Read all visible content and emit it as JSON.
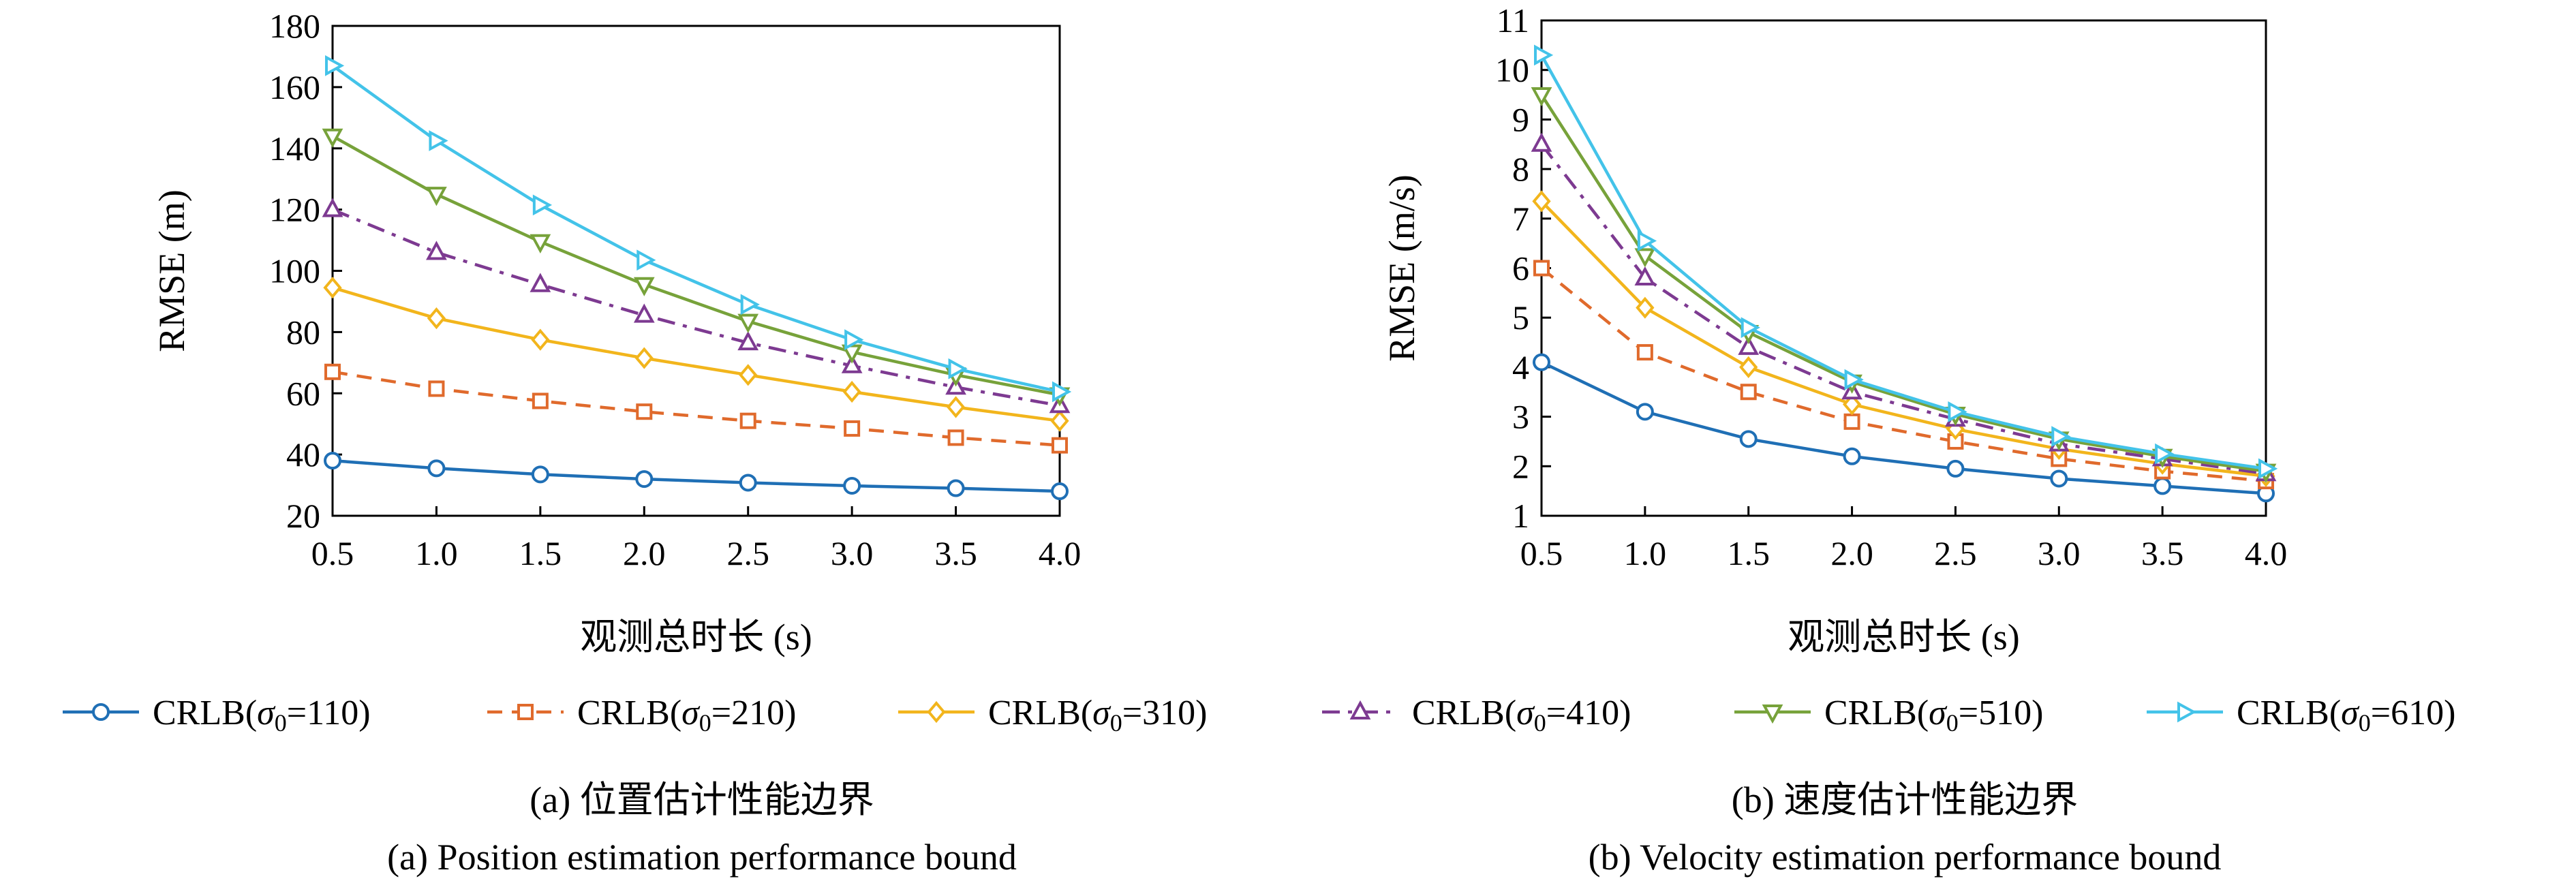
{
  "chart_data": [
    {
      "type": "line",
      "xlabel": "观测总时长 (s)",
      "ylabel": "RMSE (m)",
      "xlim": [
        0.5,
        4.0
      ],
      "ylim": [
        20,
        180
      ],
      "x": [
        0.5,
        1.0,
        1.5,
        2.0,
        2.5,
        3.0,
        3.5,
        4.0
      ],
      "x_ticks": [
        "0.5",
        "1.0",
        "1.5",
        "2.0",
        "2.5",
        "3.0",
        "3.5",
        "4.0"
      ],
      "y_ticks": [
        "20",
        "40",
        "60",
        "80",
        "100",
        "120",
        "140",
        "160",
        "180"
      ],
      "grid": false,
      "caption_zh": "(a) 位置估计性能边界",
      "caption_en": "(a) Position estimation performance bound",
      "series": [
        {
          "name": "CRLB(σ0=110)",
          "values": [
            38,
            35.5,
            33.5,
            32,
            30.8,
            29.8,
            29,
            28
          ]
        },
        {
          "name": "CRLB(σ0=210)",
          "values": [
            67,
            61.5,
            57.5,
            54,
            51,
            48.5,
            45.5,
            43
          ]
        },
        {
          "name": "CRLB(σ0=310)",
          "values": [
            94.5,
            84.5,
            77.5,
            71.5,
            66,
            60.5,
            55.5,
            51
          ]
        },
        {
          "name": "CRLB(σ0=410)",
          "values": [
            120,
            106,
            95.5,
            85.5,
            76.5,
            69,
            62,
            56
          ]
        },
        {
          "name": "CRLB(σ0=510)",
          "values": [
            144,
            125,
            109.5,
            95.5,
            83.5,
            73.5,
            66,
            59.5
          ]
        },
        {
          "name": "CRLB(σ0=610)",
          "values": [
            167,
            142.5,
            121.5,
            103.5,
            89,
            77.5,
            68,
            60.5
          ]
        }
      ]
    },
    {
      "type": "line",
      "xlabel": "观测总时长 (s)",
      "ylabel": "RMSE (m/s)",
      "xlim": [
        0.5,
        4.0
      ],
      "ylim": [
        1,
        11
      ],
      "x": [
        0.5,
        1.0,
        1.5,
        2.0,
        2.5,
        3.0,
        3.5,
        4.0
      ],
      "x_ticks": [
        "0.5",
        "1.0",
        "1.5",
        "2.0",
        "2.5",
        "3.0",
        "3.5",
        "4.0"
      ],
      "y_ticks": [
        "1",
        "2",
        "3",
        "4",
        "5",
        "6",
        "7",
        "8",
        "9",
        "10",
        "11"
      ],
      "grid": false,
      "caption_zh": "(b) 速度估计性能边界",
      "caption_en": "(b) Velocity estimation performance bound",
      "series": [
        {
          "name": "CRLB(σ0=110)",
          "values": [
            4.1,
            3.1,
            2.55,
            2.2,
            1.95,
            1.75,
            1.6,
            1.45
          ]
        },
        {
          "name": "CRLB(σ0=210)",
          "values": [
            6.0,
            4.3,
            3.5,
            2.9,
            2.5,
            2.15,
            1.9,
            1.7
          ]
        },
        {
          "name": "CRLB(σ0=310)",
          "values": [
            7.35,
            5.2,
            4.0,
            3.25,
            2.75,
            2.35,
            2.05,
            1.8
          ]
        },
        {
          "name": "CRLB(σ0=410)",
          "values": [
            8.5,
            5.8,
            4.4,
            3.5,
            2.95,
            2.45,
            2.15,
            1.85
          ]
        },
        {
          "name": "CRLB(σ0=510)",
          "values": [
            9.5,
            6.25,
            4.7,
            3.7,
            3.05,
            2.55,
            2.2,
            1.9
          ]
        },
        {
          "name": "CRLB(σ0=610)",
          "values": [
            10.3,
            6.55,
            4.8,
            3.75,
            3.1,
            2.6,
            2.25,
            1.95
          ]
        }
      ]
    }
  ],
  "legend": {
    "placement": "bottom",
    "items": [
      {
        "label_prefix": "CRLB(",
        "sigma": "σ",
        "sub": "0",
        "label_suffix": "=110)",
        "color": "#1f6fb5",
        "marker": "circle",
        "dash": "solid"
      },
      {
        "label_prefix": "CRLB(",
        "sigma": "σ",
        "sub": "0",
        "label_suffix": "=210)",
        "color": "#e06a2c",
        "marker": "square",
        "dash": "dashed"
      },
      {
        "label_prefix": "CRLB(",
        "sigma": "σ",
        "sub": "0",
        "label_suffix": "=310)",
        "color": "#f2b51c",
        "marker": "diamond",
        "dash": "solid"
      },
      {
        "label_prefix": "CRLB(",
        "sigma": "σ",
        "sub": "0",
        "label_suffix": "=410)",
        "color": "#7d3a91",
        "marker": "triangle-up",
        "dash": "dashdot"
      },
      {
        "label_prefix": "CRLB(",
        "sigma": "σ",
        "sub": "0",
        "label_suffix": "=510)",
        "color": "#77a23a",
        "marker": "triangle-down",
        "dash": "solid"
      },
      {
        "label_prefix": "CRLB(",
        "sigma": "σ",
        "sub": "0",
        "label_suffix": "=610)",
        "color": "#43c3e9",
        "marker": "triangle-right",
        "dash": "solid"
      }
    ]
  }
}
